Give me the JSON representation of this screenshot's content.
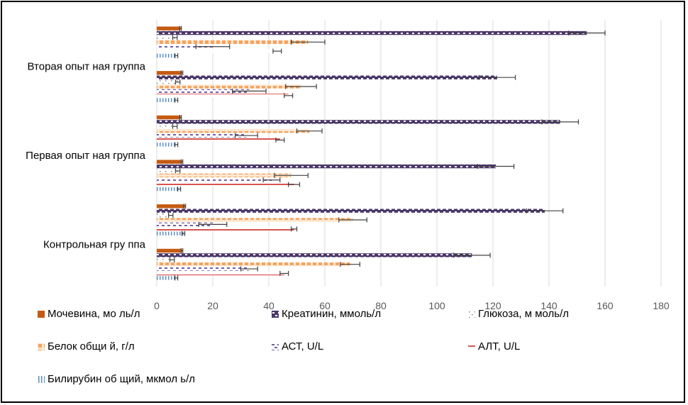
{
  "chart_data": {
    "type": "bar",
    "orientation": "horizontal",
    "title": "",
    "xlabel": "",
    "ylabel": "",
    "xlim": [
      0,
      180
    ],
    "x_ticks": [
      "0",
      "20",
      "40",
      "60",
      "80",
      "100",
      "120",
      "140",
      "160",
      "180"
    ],
    "x_tick_values": [
      0,
      20,
      40,
      60,
      80,
      100,
      120,
      140,
      160,
      180
    ],
    "grid": true,
    "legend_position": "bottom",
    "categories": [
      "Контрольная гру ппа",
      "",
      "Первая опыт ная группа",
      "",
      "Вторая опыт ная группа",
      ""
    ],
    "series": [
      {
        "name": "Мочевина, мо ль/л",
        "color": "#c55a11",
        "pattern": "solid",
        "values": [
          9,
          10,
          9,
          8.5,
          9,
          8.5
        ],
        "error": [
          0.3,
          0.3,
          0.3,
          0.3,
          0.3,
          0.3
        ]
      },
      {
        "name": "Креатинин, ммоль/л",
        "color": "#4b3869",
        "pattern": "checker",
        "values": [
          112.5,
          138.5,
          121,
          144,
          121.5,
          153.5
        ],
        "error": [
          6.5,
          6.5,
          6.5,
          6.5,
          6.5,
          6.5
        ]
      },
      {
        "name": "Глюкоза, м моль/л",
        "color": "#7f7f7f",
        "pattern": "dots",
        "values": [
          5.5,
          5,
          7.5,
          6.5,
          7.5,
          6.5
        ],
        "error": [
          0.8,
          0.8,
          0.8,
          0.8,
          0.8,
          0.8
        ]
      },
      {
        "name": "Белок общи й, г/л",
        "color": "#f4a460",
        "pattern": "squares",
        "values": [
          69,
          70,
          48,
          54.5,
          51.5,
          54
        ],
        "error": [
          3.5,
          5,
          6,
          4.5,
          5.5,
          6
        ]
      },
      {
        "name": "АСТ, U/L",
        "color": "#7060a8",
        "pattern": "dashes",
        "values": [
          33,
          20,
          41,
          32,
          33,
          20
        ],
        "error": [
          3,
          5,
          3,
          4,
          6,
          6
        ]
      },
      {
        "name": "АЛТ, U/L",
        "color": "#d9534f",
        "pattern": "line",
        "values": [
          45.5,
          49,
          49,
          44,
          47,
          43
        ],
        "error": [
          1.5,
          1,
          2,
          1.5,
          1.5,
          1.5
        ]
      },
      {
        "name": "Билирубин об щий, мкмол ь/л",
        "color": "#5b8fc7",
        "pattern": "vlines",
        "values": [
          7,
          9.5,
          8,
          7,
          7,
          7
        ],
        "error": [
          0.5,
          0.5,
          0.5,
          0.5,
          0.5,
          0.5
        ]
      }
    ]
  }
}
